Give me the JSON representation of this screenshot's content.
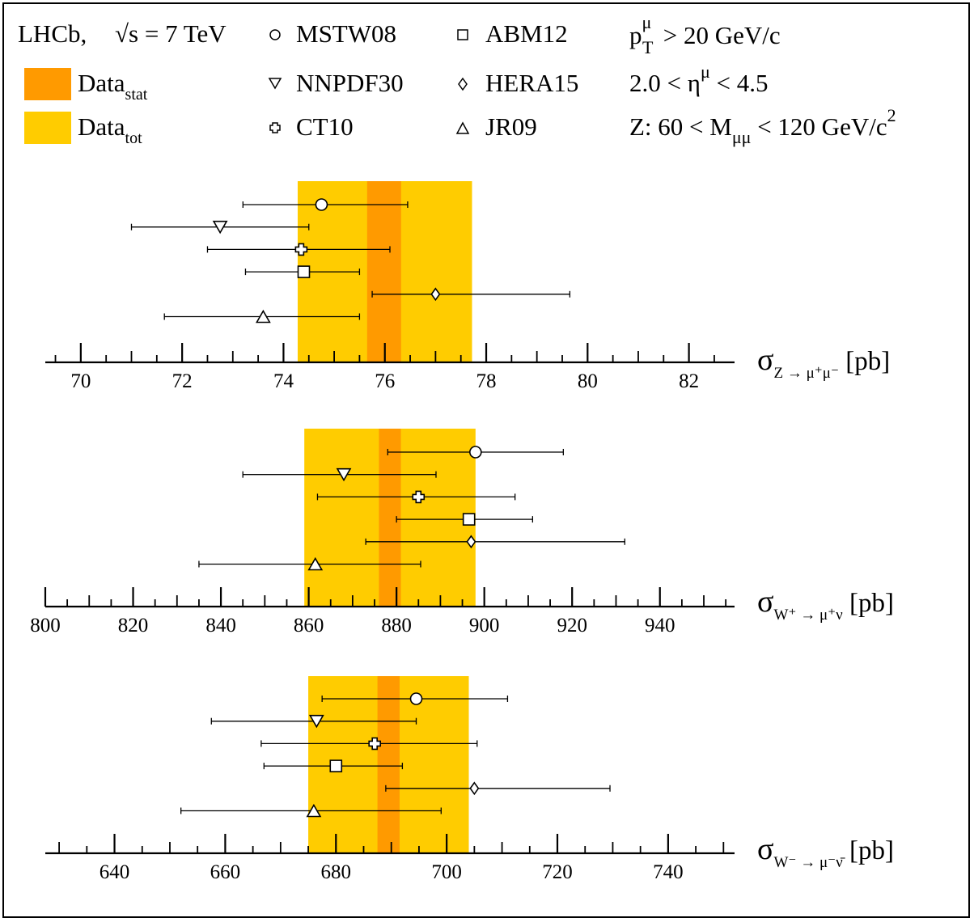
{
  "legend": {
    "experiment": "LHCb,",
    "energy": "s = 7 TeV",
    "energy_prefix": "√",
    "bands": [
      {
        "label": "Data",
        "sub": "stat",
        "color": "#ff9a00"
      },
      {
        "label": "Data",
        "sub": "tot",
        "color": "#ffcc00"
      }
    ],
    "models": [
      {
        "name": "MSTW08",
        "marker": "circle"
      },
      {
        "name": "ABM12",
        "marker": "square"
      },
      {
        "name": "NNPDF30",
        "marker": "triangle-down"
      },
      {
        "name": "HERA15",
        "marker": "diamond"
      },
      {
        "name": "CT10",
        "marker": "cross"
      },
      {
        "name": "JR09",
        "marker": "triangle-up"
      }
    ],
    "cuts": {
      "pt": {
        "p": "p",
        "sub": "T",
        "sup": "μ",
        "rest": " > 20 GeV/c"
      },
      "eta": {
        "pre": "2.0 < η",
        "sup": "μ",
        "rest": " < 4.5"
      },
      "mass": {
        "pre": "Z: 60 < M",
        "sub": "μμ",
        "rest": " < 120 GeV/c",
        "sup": "2"
      }
    }
  },
  "chart_data": [
    {
      "type": "scatter",
      "name": "z",
      "xlabel": {
        "main": "σ",
        "sub": "Z → μ⁺μ⁻",
        "unit": " [pb]"
      },
      "xlim": [
        69.3,
        82.9
      ],
      "ticks": [
        70,
        72,
        74,
        76,
        78,
        80,
        82
      ],
      "minor_step": 0.5,
      "data_stat": [
        75.65,
        76.32
      ],
      "data_tot": [
        74.28,
        77.72
      ],
      "points": [
        {
          "model": "MSTW08",
          "marker": "circle",
          "value": 74.75,
          "err_low": 73.2,
          "err_high": 76.45
        },
        {
          "model": "NNPDF30",
          "marker": "triangle-down",
          "value": 72.75,
          "err_low": 71.0,
          "err_high": 74.5
        },
        {
          "model": "CT10",
          "marker": "cross",
          "value": 74.35,
          "err_low": 72.5,
          "err_high": 76.1
        },
        {
          "model": "ABM12",
          "marker": "square",
          "value": 74.4,
          "err_low": 73.25,
          "err_high": 75.5
        },
        {
          "model": "HERA15",
          "marker": "diamond",
          "value": 77.0,
          "err_low": 75.75,
          "err_high": 79.65
        },
        {
          "model": "JR09",
          "marker": "triangle-up",
          "value": 73.6,
          "err_low": 71.65,
          "err_high": 75.5
        }
      ]
    },
    {
      "type": "scatter",
      "name": "wplus",
      "xlabel": {
        "main": "σ",
        "sub": "W⁺ → μ⁺ν",
        "unit": " [pb]"
      },
      "xlim": [
        800,
        957
      ],
      "ticks": [
        800,
        820,
        840,
        860,
        880,
        900,
        920,
        940
      ],
      "minor_step": 5,
      "data_stat": [
        876,
        881
      ],
      "data_tot": [
        859,
        898
      ],
      "points": [
        {
          "model": "MSTW08",
          "marker": "circle",
          "value": 898,
          "err_low": 878,
          "err_high": 918
        },
        {
          "model": "NNPDF30",
          "marker": "triangle-down",
          "value": 868,
          "err_low": 845,
          "err_high": 889
        },
        {
          "model": "CT10",
          "marker": "cross",
          "value": 885,
          "err_low": 862,
          "err_high": 907
        },
        {
          "model": "ABM12",
          "marker": "square",
          "value": 896.5,
          "err_low": 880,
          "err_high": 911
        },
        {
          "model": "HERA15",
          "marker": "diamond",
          "value": 897,
          "err_low": 873,
          "err_high": 932
        },
        {
          "model": "JR09",
          "marker": "triangle-up",
          "value": 861.5,
          "err_low": 835,
          "err_high": 885.5
        }
      ]
    },
    {
      "type": "scatter",
      "name": "wminus",
      "xlabel": {
        "main": "σ",
        "sub": "W⁻ → μ⁻ν̄",
        "unit": " [pb]"
      },
      "xlim": [
        627.5,
        752
      ],
      "ticks": [
        640,
        660,
        680,
        700,
        720,
        740
      ],
      "minor_step": 5,
      "data_stat": [
        687.5,
        691.5
      ],
      "data_tot": [
        675,
        704
      ],
      "points": [
        {
          "model": "MSTW08",
          "marker": "circle",
          "value": 694.5,
          "err_low": 677.5,
          "err_high": 711
        },
        {
          "model": "NNPDF30",
          "marker": "triangle-down",
          "value": 676.5,
          "err_low": 657.5,
          "err_high": 694.5
        },
        {
          "model": "CT10",
          "marker": "cross",
          "value": 687,
          "err_low": 666.5,
          "err_high": 705.5
        },
        {
          "model": "ABM12",
          "marker": "square",
          "value": 680,
          "err_low": 667,
          "err_high": 692
        },
        {
          "model": "HERA15",
          "marker": "diamond",
          "value": 705,
          "err_low": 689,
          "err_high": 729.5
        },
        {
          "model": "JR09",
          "marker": "triangle-up",
          "value": 676,
          "err_low": 652,
          "err_high": 699
        }
      ]
    }
  ]
}
